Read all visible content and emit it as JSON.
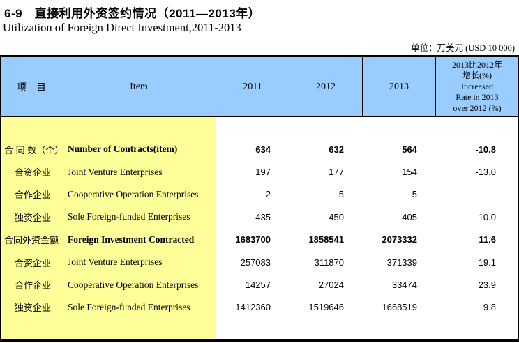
{
  "page": {
    "title_cn": "6-9　直接利用外资签约情况（2011—2013年）",
    "title_en": "Utilization of Foreign Direct Investment,2011-2013",
    "unit_note": "单位：万美元 (USD 10 000)"
  },
  "colors": {
    "header_bg": "#99CCFF",
    "item_column_bg": "#FFFF99",
    "border": "#000000"
  },
  "table": {
    "header": {
      "item_cn": "项　目",
      "item_en": "Item",
      "years": [
        "2011",
        "2012",
        "2013"
      ],
      "growth_lines": [
        "2013比2012年",
        "增长(%)",
        "Increased",
        "Rate in 2013",
        "over 2012 (%)"
      ]
    },
    "rows": [
      {
        "cn": "合 同 数（个）",
        "en": "Number of Contracts(item)",
        "v2011": "634",
        "v2012": "632",
        "v2013": "564",
        "growth": "-10.8"
      },
      {
        "cn": "合资企业",
        "en": "Joint Venture Enterprises",
        "v2011": "197",
        "v2012": "177",
        "v2013": "154",
        "growth": "-13.0"
      },
      {
        "cn": "合作企业",
        "en": "Cooperative Operation Enterprises",
        "v2011": "2",
        "v2012": "5",
        "v2013": "5",
        "growth": ""
      },
      {
        "cn": "独资企业",
        "en": "Sole Foreign-funded Enterprises",
        "v2011": "435",
        "v2012": "450",
        "v2013": "405",
        "growth": "-10.0"
      },
      {
        "cn": "合同外资金额",
        "en": "Foreign Investment Contracted",
        "v2011": "1683700",
        "v2012": "1858541",
        "v2013": "2073332",
        "growth": "11.6"
      },
      {
        "cn": "合资企业",
        "en": "Joint Venture Enterprises",
        "v2011": "257083",
        "v2012": "311870",
        "v2013": "371339",
        "growth": "19.1"
      },
      {
        "cn": "合作企业",
        "en": "Cooperative Operation Enterprises",
        "v2011": "14257",
        "v2012": "27024",
        "v2013": "33474",
        "growth": "23.9"
      },
      {
        "cn": "独资企业",
        "en": "Sole Foreign-funded Enterprises",
        "v2011": "1412360",
        "v2012": "1519646",
        "v2013": "1668519",
        "growth": "9.8"
      }
    ]
  }
}
